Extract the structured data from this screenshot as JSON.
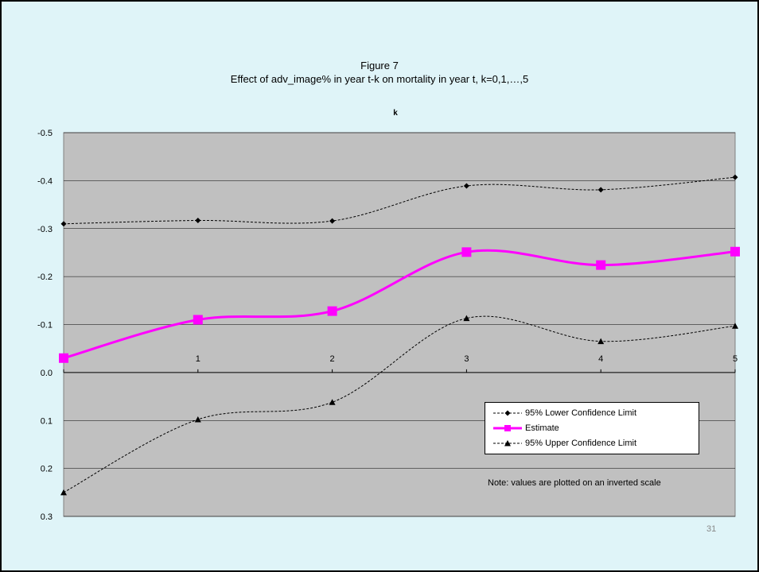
{
  "slide": {
    "page_number": "31",
    "background": "#dff4f8"
  },
  "chart_data": {
    "type": "line",
    "title": "Figure 7",
    "subtitle": "Effect of adv_image% in year t-k on mortality in year t, k=0,1,…,5",
    "xlabel": "k",
    "ylabel": "",
    "categories": [
      "0",
      "1",
      "2",
      "3",
      "4",
      "5"
    ],
    "x": [
      0,
      1,
      2,
      3,
      4,
      5
    ],
    "ylim": [
      -0.5,
      0.3
    ],
    "y_inverted": true,
    "y_ticks": [
      "-0.5",
      "-0.4",
      "-0.3",
      "-0.2",
      "-0.1",
      "0.0",
      "0.1",
      "0.2",
      "0.3"
    ],
    "y_tick_values": [
      -0.5,
      -0.4,
      -0.3,
      -0.2,
      -0.1,
      0.0,
      0.1,
      0.2,
      0.3
    ],
    "grid": true,
    "plot_background": "#c0c0c0",
    "smoothed": true,
    "series": [
      {
        "name": "95% Lower Confidence Limit",
        "values": [
          -0.31,
          -0.317,
          -0.316,
          -0.389,
          -0.381,
          -0.407
        ],
        "color": "#000000",
        "marker": "diamond",
        "dashed": true
      },
      {
        "name": "Estimate",
        "values": [
          -0.03,
          -0.11,
          -0.128,
          -0.251,
          -0.224,
          -0.252
        ],
        "color": "#ff00ff",
        "marker": "square",
        "dashed": false
      },
      {
        "name": "95% Upper Confidence Limit",
        "values": [
          0.25,
          0.098,
          0.062,
          -0.113,
          -0.065,
          -0.097
        ],
        "color": "#000000",
        "marker": "triangle",
        "dashed": true
      }
    ],
    "legend_position": "bottom-right",
    "annotation": "Note: values are plotted on an inverted scale"
  }
}
